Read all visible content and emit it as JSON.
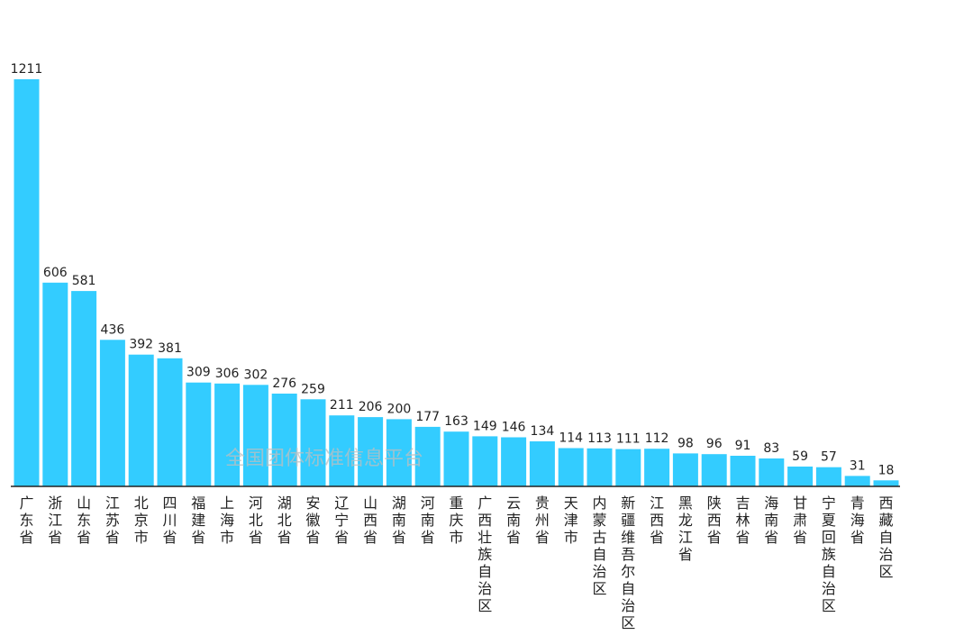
{
  "chart_data": {
    "type": "bar",
    "categories": [
      "广东省",
      "浙江省",
      "山东省",
      "江苏省",
      "北京市",
      "四川省",
      "福建省",
      "上海市",
      "河北省",
      "湖北省",
      "安徽省",
      "辽宁省",
      "山西省",
      "湖南省",
      "河南省",
      "重庆市",
      "广西壮族自治区",
      "云南省",
      "贵州省",
      "天津市",
      "内蒙古自治区",
      "新疆维吾尔自治区",
      "江西省",
      "黑龙江省",
      "陕西省",
      "吉林省",
      "海南省",
      "甘肃省",
      "宁夏回族自治区",
      "青海省",
      "西藏自治区"
    ],
    "values": [
      1211,
      606,
      581,
      436,
      392,
      381,
      309,
      306,
      302,
      276,
      259,
      211,
      206,
      200,
      177,
      163,
      149,
      146,
      134,
      114,
      113,
      111,
      112,
      98,
      96,
      91,
      83,
      59,
      57,
      31,
      18
    ],
    "ylim": [
      0,
      1211
    ],
    "grid": false,
    "legend": "none",
    "bar_color": "#33ccff"
  },
  "watermark": "全国团体标准信息平台"
}
